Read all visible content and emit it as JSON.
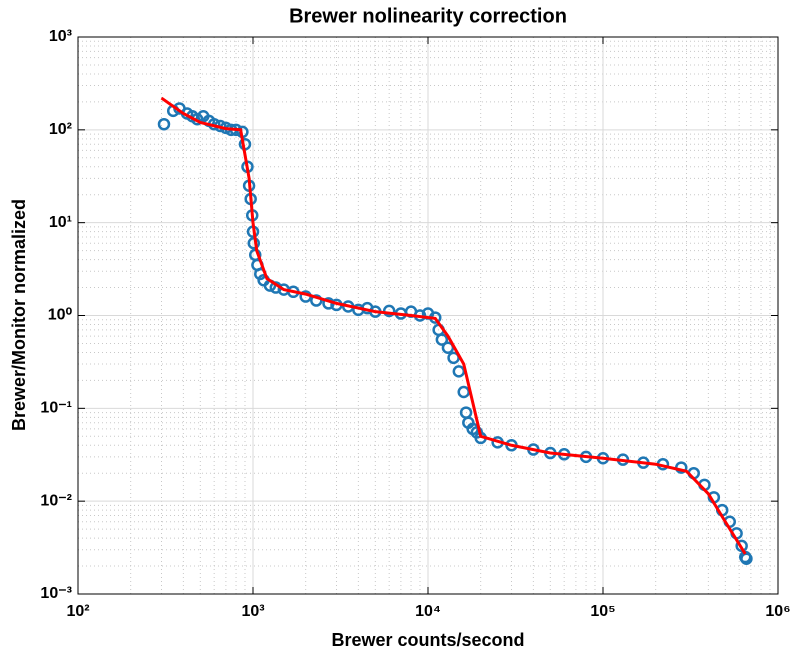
{
  "chart_data": {
    "type": "scatter",
    "title": "Brewer nolinearity correction",
    "xlabel": "Brewer counts/second",
    "ylabel": "Brewer/Monitor normalized",
    "xscale": "log",
    "yscale": "log",
    "grid": true,
    "xlim": [
      100,
      1000000
    ],
    "ylim": [
      0.001,
      1000
    ],
    "xticks": [
      {
        "value": 100,
        "label": "10²"
      },
      {
        "value": 1000,
        "label": "10³"
      },
      {
        "value": 10000,
        "label": "10⁴"
      },
      {
        "value": 100000,
        "label": "10⁵"
      },
      {
        "value": 1000000,
        "label": "10⁶"
      }
    ],
    "yticks": [
      {
        "value": 0.001,
        "label": "10⁻³"
      },
      {
        "value": 0.01,
        "label": "10⁻²"
      },
      {
        "value": 0.1,
        "label": "10⁻¹"
      },
      {
        "value": 1,
        "label": "10⁰"
      },
      {
        "value": 10,
        "label": "10¹"
      },
      {
        "value": 100,
        "label": "10²"
      },
      {
        "value": 1000,
        "label": "10³"
      }
    ],
    "series": [
      {
        "type": "scatter",
        "color": "#1f77b4",
        "x": [
          310,
          350,
          380,
          420,
          450,
          480,
          520,
          560,
          600,
          650,
          700,
          750,
          800,
          870,
          900,
          930,
          950,
          970,
          990,
          1000,
          1010,
          1030,
          1060,
          1100,
          1150,
          1250,
          1350,
          1500,
          1700,
          2000,
          2300,
          2700,
          3000,
          3500,
          4000,
          4500,
          5000,
          6000,
          7000,
          8000,
          9000,
          10000,
          11000,
          11500,
          12000,
          13000,
          14000,
          15000,
          16000,
          16500,
          17000,
          18000,
          19000,
          20000,
          25000,
          30000,
          40000,
          50000,
          60000,
          80000,
          100000,
          130000,
          170000,
          220000,
          280000,
          330000,
          380000,
          430000,
          480000,
          530000,
          580000,
          620000,
          650000,
          660000
        ],
        "values": [
          115,
          160,
          170,
          150,
          140,
          130,
          140,
          125,
          115,
          110,
          105,
          100,
          100,
          95,
          70,
          40,
          25,
          18,
          12,
          8,
          6,
          4.5,
          3.5,
          2.8,
          2.4,
          2.1,
          2.0,
          1.9,
          1.8,
          1.6,
          1.45,
          1.35,
          1.3,
          1.25,
          1.15,
          1.2,
          1.1,
          1.12,
          1.05,
          1.1,
          1.0,
          1.05,
          0.95,
          0.7,
          0.55,
          0.45,
          0.35,
          0.25,
          0.15,
          0.09,
          0.07,
          0.06,
          0.055,
          0.048,
          0.043,
          0.04,
          0.036,
          0.033,
          0.032,
          0.03,
          0.029,
          0.028,
          0.026,
          0.025,
          0.023,
          0.02,
          0.015,
          0.011,
          0.008,
          0.006,
          0.0045,
          0.0033,
          0.0025,
          0.0024
        ]
      },
      {
        "type": "line",
        "color": "#ff0000",
        "x": [
          300,
          400,
          500,
          700,
          850,
          950,
          1000,
          1050,
          1200,
          1500,
          2000,
          3000,
          5000,
          8000,
          11000,
          13000,
          16000,
          20000,
          30000,
          50000,
          100000,
          200000,
          300000,
          400000,
          500000,
          650000
        ],
        "values": [
          220,
          150,
          120,
          103,
          100,
          30,
          10,
          5,
          2.5,
          1.9,
          1.7,
          1.35,
          1.1,
          1.0,
          0.93,
          0.6,
          0.3,
          0.05,
          0.04,
          0.033,
          0.029,
          0.025,
          0.021,
          0.012,
          0.006,
          0.0027
        ]
      }
    ]
  }
}
